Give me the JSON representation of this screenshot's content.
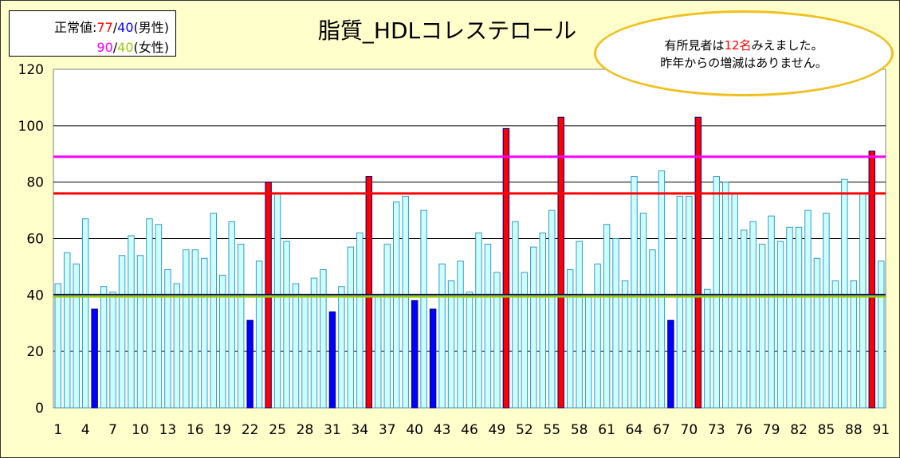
{
  "legend": {
    "label": "正常値:",
    "male_upper": "77",
    "sep": "/",
    "male_lower": "40",
    "male_suffix": "(男性)",
    "female_upper": "90",
    "female_lower": "40",
    "female_suffix": "(女性)",
    "colors": {
      "male_upper": "#ff0000",
      "male_lower": "#0000ff",
      "female_upper": "#ff00ff",
      "female_lower": "#99cc00"
    }
  },
  "callout": {
    "line1_prefix": "有所見者は",
    "line1_count": "12名",
    "line1_suffix": "みえました。",
    "line2": "昨年からの増減はありません。"
  },
  "chart_data": {
    "type": "bar",
    "title": "脂質_HDLコレステロール",
    "xlabel": "",
    "ylabel": "",
    "ylim": [
      0,
      120
    ],
    "yticks": [
      0,
      20,
      40,
      60,
      80,
      100,
      120
    ],
    "xtick_labels": [
      "1",
      "4",
      "7",
      "10",
      "13",
      "16",
      "19",
      "22",
      "25",
      "28",
      "31",
      "34",
      "37",
      "40",
      "43",
      "46",
      "49",
      "52",
      "55",
      "58",
      "61",
      "64",
      "67",
      "70",
      "73",
      "76",
      "79",
      "82",
      "85",
      "88",
      "91"
    ],
    "x": [
      1,
      2,
      3,
      4,
      5,
      6,
      7,
      8,
      9,
      10,
      11,
      12,
      13,
      14,
      15,
      16,
      17,
      18,
      19,
      20,
      21,
      22,
      23,
      24,
      25,
      26,
      27,
      28,
      29,
      30,
      31,
      32,
      33,
      34,
      35,
      36,
      37,
      38,
      39,
      40,
      41,
      42,
      43,
      44,
      45,
      46,
      47,
      48,
      49,
      50,
      51,
      52,
      53,
      54,
      55,
      56,
      57,
      58,
      59,
      60,
      61,
      62,
      63,
      64,
      65,
      66,
      67,
      68,
      69,
      70,
      71,
      72,
      73,
      74,
      75,
      76,
      77,
      78,
      79,
      80,
      81,
      82,
      83,
      84,
      85,
      86,
      87,
      88,
      89,
      90,
      91
    ],
    "values": [
      44,
      55,
      51,
      67,
      35,
      43,
      41,
      54,
      61,
      54,
      67,
      65,
      49,
      44,
      56,
      56,
      53,
      69,
      47,
      66,
      58,
      31,
      52,
      80,
      76,
      59,
      44,
      40,
      46,
      49,
      34,
      43,
      57,
      62,
      82,
      40,
      58,
      73,
      75,
      38,
      70,
      35,
      51,
      45,
      52,
      41,
      62,
      58,
      48,
      99,
      66,
      48,
      57,
      62,
      70,
      103,
      49,
      59,
      40,
      51,
      65,
      60,
      45,
      82,
      69,
      56,
      84,
      31,
      75,
      75,
      103,
      42,
      82,
      80,
      76,
      63,
      66,
      58,
      68,
      59,
      64,
      64,
      70,
      53,
      69,
      45,
      81,
      45,
      76,
      91,
      52
    ],
    "status": [
      "n",
      "n",
      "n",
      "n",
      "low",
      "n",
      "n",
      "n",
      "n",
      "n",
      "n",
      "n",
      "n",
      "n",
      "n",
      "n",
      "n",
      "n",
      "n",
      "n",
      "n",
      "low",
      "n",
      "high",
      "n",
      "n",
      "n",
      "n",
      "n",
      "n",
      "low",
      "n",
      "n",
      "n",
      "high",
      "n",
      "n",
      "n",
      "n",
      "low",
      "n",
      "low",
      "n",
      "n",
      "n",
      "n",
      "n",
      "n",
      "n",
      "high",
      "n",
      "n",
      "n",
      "n",
      "n",
      "high",
      "n",
      "n",
      "n",
      "n",
      "n",
      "n",
      "n",
      "n",
      "n",
      "n",
      "n",
      "low",
      "n",
      "n",
      "high",
      "n",
      "n",
      "n",
      "n",
      "n",
      "n",
      "n",
      "n",
      "n",
      "n",
      "n",
      "n",
      "n",
      "n",
      "n",
      "n",
      "n",
      "n",
      "high",
      "n"
    ],
    "reference_lines": [
      {
        "value": 89,
        "color": "#ff00ff"
      },
      {
        "value": 76,
        "color": "#ff0000"
      },
      {
        "value": 40,
        "color": "#000080"
      },
      {
        "value": 39.5,
        "color": "#99cc00"
      }
    ],
    "colors": {
      "normal": "#ccffff",
      "normal_edge": "#3399cc",
      "low": "#0000ff",
      "high": "#ff0000"
    },
    "grid": true
  }
}
